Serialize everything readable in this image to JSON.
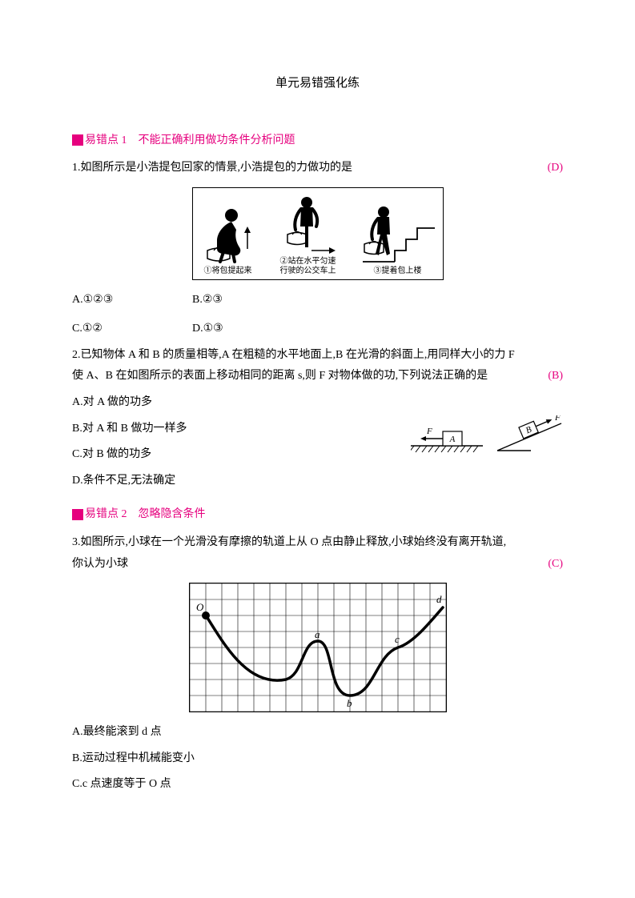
{
  "title": "单元易错强化练",
  "sections": [
    {
      "id": "s1",
      "label": "易错点 1　不能正确利用做功条件分析问题"
    },
    {
      "id": "s2",
      "label": "易错点 2　忽略隐含条件"
    }
  ],
  "q1": {
    "text": "1.如图所示是小浩提包回家的情景,小浩提包的力做功的是",
    "answer": "(D)",
    "answer_color": "#e6007e",
    "fig_captions": [
      "①将包提起来",
      "②站在水平匀速\n行驶的公交车上",
      "③提着包上楼"
    ],
    "options": {
      "A": "A.①②③",
      "B": "B.②③",
      "C": "C.①②",
      "D": "D.①③"
    }
  },
  "q2": {
    "line1": "2.已知物体 A 和 B 的质量相等,A 在粗糙的水平地面上,B 在光滑的斜面上,用同样大小的力 F",
    "line2_prefix": "使 A、B 在如图所示的表面上移动相同的距离 s,则 F 对物体做的功,下列说法正确的是",
    "answer": "(B)",
    "answer_color": "#e6007e",
    "options": {
      "A": "A.对 A 做的功多",
      "B": "B.对 A 和 B 做功一样多",
      "C": "C.对 B 做的功多",
      "D": "D.条件不足,无法确定"
    },
    "fig_labels": {
      "A": "A",
      "B": "B",
      "F1": "F",
      "F2": "F"
    }
  },
  "q3": {
    "line1": "3.如图所示,小球在一个光滑没有摩擦的轨道上从 O 点由静止释放,小球始终没有离开轨道,",
    "line2": "你认为小球",
    "answer": "(C)",
    "answer_color": "#e6007e",
    "fig_labels": {
      "O": "O",
      "a": "a",
      "b": "b",
      "c": "c",
      "d": "d"
    },
    "grid": {
      "cols": 16,
      "rows": 8,
      "cell": 20,
      "color": "#000000"
    },
    "options": {
      "A": "A.最终能滚到 d 点",
      "B": "B.运动过程中机械能变小",
      "C": "C.c 点速度等于 O 点"
    }
  }
}
